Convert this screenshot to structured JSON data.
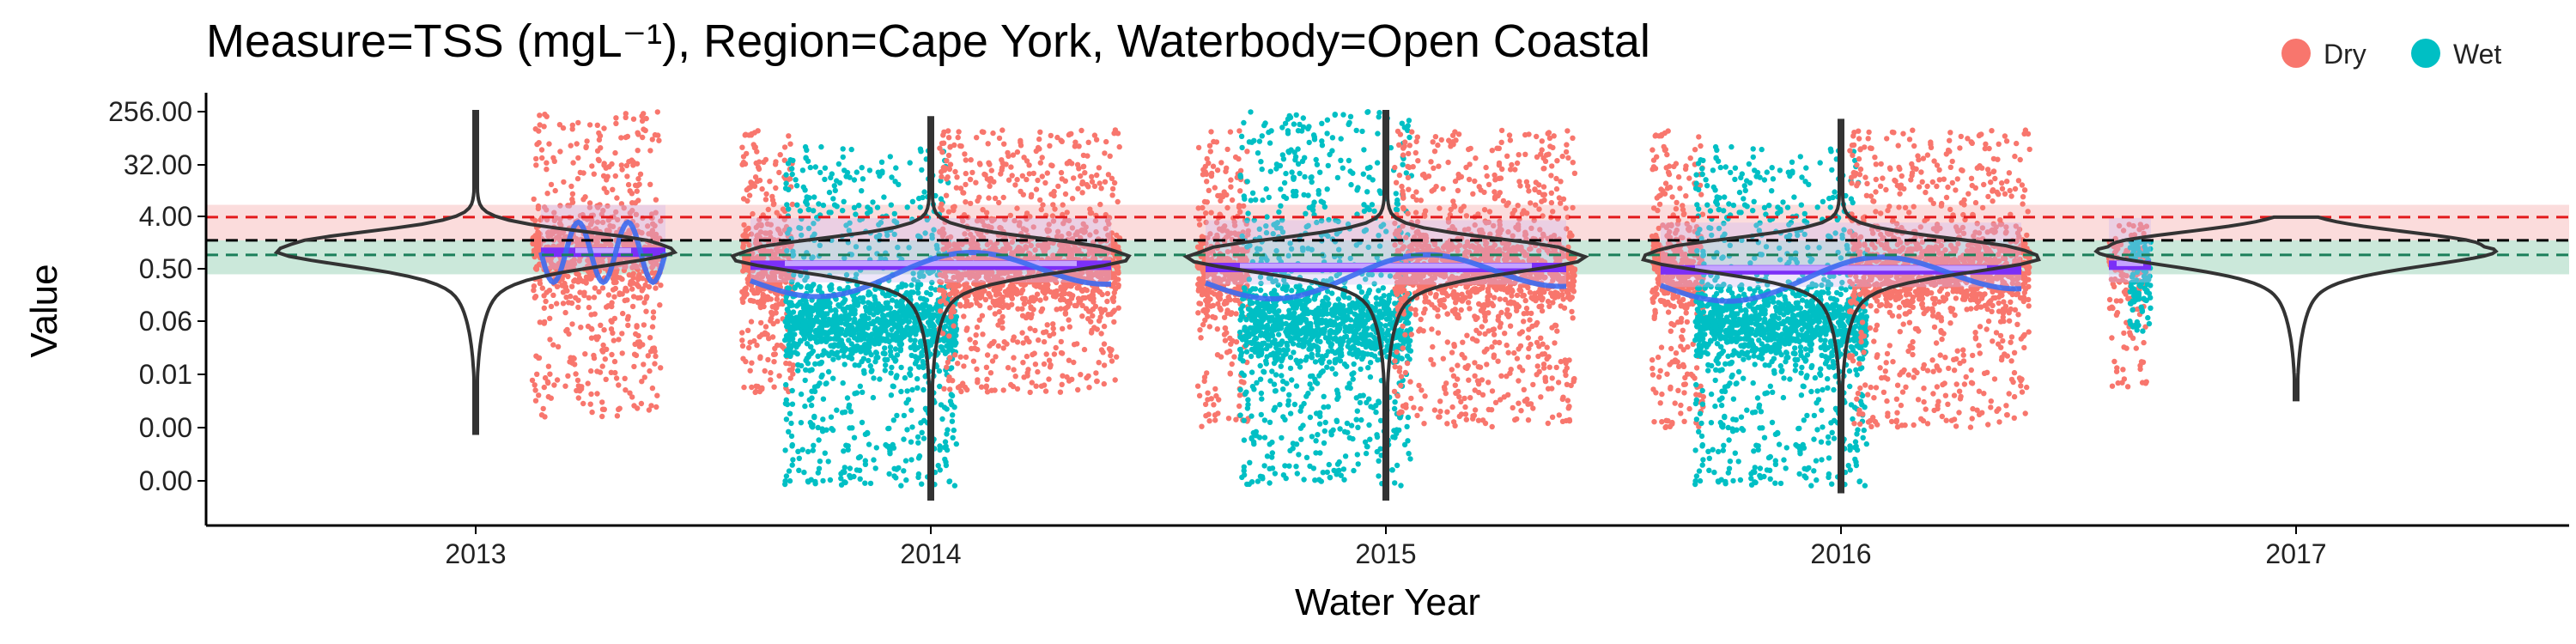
{
  "chart_data": {
    "type": "scatter",
    "title": "Measure=TSS (mgL⁻¹), Region=Cape York, Waterbody=Open Coastal",
    "xlabel": "Water Year",
    "ylabel": "Value",
    "x_categories": [
      "2013",
      "2014",
      "2015",
      "2016",
      "2017"
    ],
    "y_scale": "log2",
    "y_ticks": [
      "256.00",
      "32.00",
      "4.00",
      "0.50",
      "0.06",
      "0.01",
      "0.00",
      "0.00"
    ],
    "y_tick_values": [
      256,
      32,
      4,
      0.5,
      0.0625,
      0.0078125,
      0.0009765625,
      0.0001220703125
    ],
    "legend": {
      "position": "top-right",
      "entries": [
        {
          "name": "Dry",
          "color": "#F8766D"
        },
        {
          "name": "Wet",
          "color": "#00BFC4"
        }
      ]
    },
    "reference_lines": [
      {
        "value": 4.0,
        "color": "#E31A1C",
        "style": "dashed"
      },
      {
        "value": 1.6,
        "color": "#000000",
        "style": "dashed"
      },
      {
        "value": 0.9,
        "color": "#1B7F5A",
        "style": "dashed"
      }
    ],
    "reference_bands": [
      {
        "from": 1.6,
        "to": 6.5,
        "color": "#F8C5C5"
      },
      {
        "from": 0.42,
        "to": 1.6,
        "color": "#A8D8C2"
      }
    ],
    "series": [
      {
        "name": "Dry",
        "color": "#F8766D"
      },
      {
        "name": "Wet",
        "color": "#00BFC4"
      }
    ],
    "years": [
      {
        "label": "2013",
        "violin_top": 256,
        "violin_bottom": 0.0008,
        "violin_mode": 1.3,
        "dry_top": 256,
        "dry_bottom": 0.0015,
        "wet_top": 0,
        "wet_bottom": 0,
        "median": 1.0
      },
      {
        "label": "2014",
        "violin_top": 200,
        "violin_bottom": 6e-05,
        "violin_mode": 1.0,
        "dry_top": 128,
        "dry_bottom": 0.004,
        "wet_top": 64,
        "wet_bottom": 0.0001,
        "median": 0.6
      },
      {
        "label": "2015",
        "violin_top": 256,
        "violin_bottom": 6e-05,
        "violin_mode": 1.0,
        "dry_top": 128,
        "dry_bottom": 0.001,
        "wet_top": 256,
        "wet_bottom": 0.0001,
        "median": 0.55
      },
      {
        "label": "2016",
        "violin_top": 180,
        "violin_bottom": 8e-05,
        "violin_mode": 1.0,
        "dry_top": 128,
        "dry_bottom": 0.001,
        "wet_top": 64,
        "wet_bottom": 0.0001,
        "median": 0.5
      },
      {
        "label": "2017",
        "violin_top": 4,
        "violin_bottom": 0.003,
        "violin_mode": 1.3,
        "dry_top": 3,
        "dry_bottom": 0.005,
        "wet_top": 1.5,
        "wet_bottom": 0.04,
        "median": 0.6
      }
    ]
  }
}
